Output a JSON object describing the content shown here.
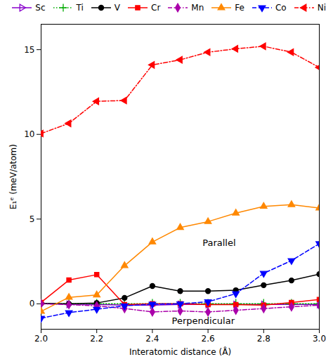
{
  "chart_data": {
    "type": "line",
    "xlabel": "Interatomic distance (Å)",
    "ylabel": "E₁ᵉ (meV/atom)",
    "xlim": [
      2.0,
      3.0
    ],
    "ylim": [
      -1.5,
      16.5
    ],
    "xticks": [
      {
        "value": 2.0,
        "label": "2.0"
      },
      2.2,
      2.4,
      2.6,
      2.8,
      {
        "value": 3.0,
        "label": "3.0"
      }
    ],
    "yticks": [
      0,
      5,
      10,
      15
    ],
    "x": [
      2.0,
      2.1,
      2.2,
      2.3,
      2.4,
      2.5,
      2.6,
      2.7,
      2.8,
      2.9,
      3.0
    ],
    "series": [
      {
        "name": "Sc",
        "color": "#8800cc",
        "line_style": "solid",
        "marker": "triangle-right-open",
        "values": [
          0.02,
          -0.03,
          -0.04,
          -0.08,
          -0.08,
          -0.04,
          -0.04,
          -0.04,
          -0.04,
          -0.04,
          -0.04
        ]
      },
      {
        "name": "Ti",
        "color": "#00aa00",
        "line_style": "dotted",
        "marker": "plus",
        "values": [
          0.0,
          0.0,
          0.0,
          0.0,
          0.0,
          0.0,
          0.0,
          0.0,
          0.0,
          0.0,
          0.0
        ]
      },
      {
        "name": "V",
        "color": "#000000",
        "line_style": "solid",
        "marker": "circle",
        "values": [
          0.02,
          0.0,
          0.05,
          0.35,
          1.05,
          0.75,
          0.75,
          0.8,
          1.1,
          1.38,
          1.75
        ]
      },
      {
        "name": "Cr",
        "color": "#ff0000",
        "line_style": "solid",
        "marker": "square",
        "values": [
          0.08,
          1.4,
          1.72,
          -0.05,
          0.0,
          0.0,
          -0.05,
          -0.05,
          -0.08,
          0.08,
          0.25
        ]
      },
      {
        "name": "Mn",
        "color": "#aa00aa",
        "line_style": "dashdot",
        "marker": "diamond",
        "values": [
          0.0,
          -0.05,
          -0.12,
          -0.28,
          -0.48,
          -0.42,
          -0.48,
          -0.38,
          -0.28,
          -0.18,
          -0.08
        ]
      },
      {
        "name": "Fe",
        "color": "#ff8800",
        "line_style": "solid",
        "marker": "triangle-up",
        "values": [
          -0.45,
          0.38,
          0.52,
          2.25,
          3.65,
          4.5,
          4.85,
          5.35,
          5.75,
          5.85,
          5.65
        ]
      },
      {
        "name": "Co",
        "color": "#0000ff",
        "line_style": "dashed",
        "marker": "triangle-down",
        "values": [
          -0.85,
          -0.52,
          -0.32,
          -0.12,
          -0.02,
          0.0,
          0.12,
          0.6,
          1.8,
          2.55,
          3.55
        ]
      },
      {
        "name": "Ni",
        "color": "#ff0000",
        "line_style": "dashdot",
        "marker": "triangle-left",
        "values": [
          10.05,
          10.65,
          11.95,
          12.0,
          14.1,
          14.4,
          14.85,
          15.05,
          15.2,
          14.85,
          13.95
        ]
      }
    ],
    "annotations": [
      {
        "text": "Parallel",
        "x": 2.58,
        "y": 3.4
      },
      {
        "text": "Perpendicular",
        "x": 2.47,
        "y": -1.2
      }
    ],
    "legend": "upper right",
    "grid": false
  }
}
